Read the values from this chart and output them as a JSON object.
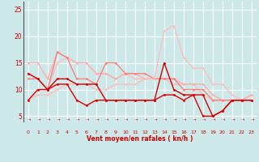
{
  "xlabel": "Vent moyen/en rafales ( kn/h )",
  "xlim": [
    -0.5,
    23.5
  ],
  "ylim": [
    4,
    26.5
  ],
  "yticks": [
    5,
    10,
    15,
    20,
    25
  ],
  "xticks": [
    0,
    1,
    2,
    3,
    4,
    5,
    6,
    7,
    8,
    9,
    10,
    11,
    12,
    13,
    14,
    15,
    16,
    17,
    18,
    19,
    20,
    21,
    22,
    23
  ],
  "background_color": "#cce8e8",
  "grid_color": "#ffffff",
  "series": [
    {
      "x": [
        0,
        1,
        2,
        3,
        4,
        5,
        6,
        7,
        8,
        9,
        10,
        11,
        12,
        13,
        14,
        15,
        16,
        17,
        18,
        19,
        20,
        21,
        22,
        23
      ],
      "y": [
        13,
        12,
        10,
        15,
        16,
        15,
        15,
        13,
        13,
        12,
        13,
        12,
        12,
        12,
        12,
        11,
        11,
        11,
        9,
        8,
        8,
        8,
        8,
        9
      ],
      "color": "#ffbbbb",
      "lw": 0.9,
      "marker": "o",
      "ms": 1.8,
      "zorder": 1
    },
    {
      "x": [
        0,
        1,
        2,
        3,
        4,
        5,
        6,
        7,
        8,
        9,
        10,
        11,
        12,
        13,
        14,
        15,
        16,
        17,
        18,
        19,
        20,
        21,
        22,
        23
      ],
      "y": [
        15,
        15,
        12,
        17,
        16,
        15,
        15,
        13,
        13,
        12,
        13,
        13,
        12,
        12,
        12,
        12,
        11,
        11,
        11,
        9,
        8,
        8,
        8,
        9
      ],
      "color": "#ffaaaa",
      "lw": 0.9,
      "marker": "o",
      "ms": 1.8,
      "zorder": 2
    },
    {
      "x": [
        0,
        1,
        2,
        3,
        4,
        5,
        6,
        7,
        8,
        9,
        10,
        11,
        12,
        13,
        14,
        15,
        16,
        17,
        18,
        19,
        20,
        21,
        22,
        23
      ],
      "y": [
        12,
        12,
        10,
        17,
        16,
        12,
        12,
        11,
        15,
        15,
        13,
        13,
        13,
        12,
        12,
        12,
        10,
        10,
        10,
        8,
        8,
        8,
        8,
        9
      ],
      "color": "#ff7777",
      "lw": 0.9,
      "marker": "o",
      "ms": 1.8,
      "zorder": 3
    },
    {
      "x": [
        0,
        1,
        2,
        3,
        4,
        5,
        6,
        7,
        8,
        9,
        10,
        11,
        12,
        13,
        14,
        15,
        16,
        17,
        18,
        19,
        20,
        21,
        22,
        23
      ],
      "y": [
        8,
        9,
        9,
        10,
        11,
        11,
        11,
        10,
        10,
        11,
        11,
        11,
        12,
        12,
        21,
        22,
        16,
        14,
        14,
        11,
        11,
        9,
        8,
        9
      ],
      "color": "#ffbbbb",
      "lw": 0.9,
      "marker": "o",
      "ms": 1.8,
      "zorder": 4
    },
    {
      "x": [
        0,
        1,
        2,
        3,
        4,
        5,
        6,
        7,
        8,
        9,
        10,
        11,
        12,
        13,
        14,
        15,
        16,
        17,
        18,
        19,
        20,
        21,
        22,
        23
      ],
      "y": [
        13,
        12,
        10,
        12,
        12,
        11,
        11,
        11,
        8,
        8,
        8,
        8,
        8,
        8,
        15,
        10,
        9,
        9,
        9,
        5,
        6,
        8,
        8,
        8
      ],
      "color": "#cc0000",
      "lw": 1.0,
      "marker": "o",
      "ms": 2.0,
      "zorder": 5
    },
    {
      "x": [
        0,
        1,
        2,
        3,
        4,
        5,
        6,
        7,
        8,
        9,
        10,
        11,
        12,
        13,
        14,
        15,
        16,
        17,
        18,
        19,
        20,
        21,
        22,
        23
      ],
      "y": [
        8,
        10,
        10,
        11,
        11,
        8,
        7,
        8,
        8,
        8,
        8,
        8,
        8,
        8,
        9,
        9,
        8,
        9,
        5,
        5,
        6,
        8,
        8,
        8
      ],
      "color": "#dd0000",
      "lw": 1.0,
      "marker": "o",
      "ms": 2.0,
      "zorder": 6
    }
  ]
}
